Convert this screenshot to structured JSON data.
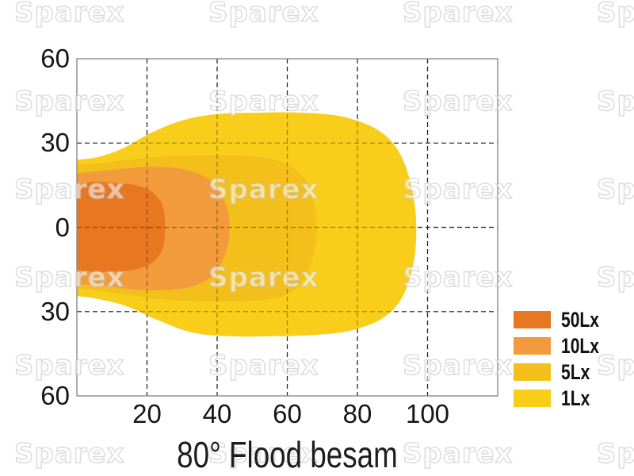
{
  "watermark": {
    "text": "Sparex"
  },
  "chart_data": {
    "type": "area",
    "subtype": "isolux-beam-pattern",
    "title": "80° Flood besam",
    "xlabel": "",
    "ylabel": "",
    "x_range": [
      0,
      120
    ],
    "y_range": [
      -60,
      60
    ],
    "x_ticks": [
      20,
      40,
      60,
      80,
      100
    ],
    "y_gridlines": [
      30,
      0,
      -30
    ],
    "y_tick_labels": [
      {
        "value": 60,
        "label": "60"
      },
      {
        "value": 30,
        "label": "30"
      },
      {
        "value": 0,
        "label": "0"
      },
      {
        "value": -30,
        "label": "30"
      },
      {
        "value": -60,
        "label": "60"
      }
    ],
    "grid": "dashed",
    "grid_color": "#3a3a3a",
    "border_color": "#8a8a8a",
    "legend_position": "bottom-right",
    "legend": [
      {
        "label": "50Lx",
        "color": "#e87722"
      },
      {
        "label": "10Lx",
        "color": "#f29b3c"
      },
      {
        "label": "5Lx",
        "color": "#f3bf1b"
      },
      {
        "label": "1Lx",
        "color": "#f9ce1b"
      }
    ],
    "series": [
      {
        "name": "1Lx",
        "color": "#f9ce1b",
        "points": [
          [
            0,
            24
          ],
          [
            6,
            25
          ],
          [
            13,
            28
          ],
          [
            21,
            33.5
          ],
          [
            30,
            38
          ],
          [
            40,
            40.3
          ],
          [
            52,
            40.8
          ],
          [
            64,
            40.8
          ],
          [
            76,
            39.3
          ],
          [
            86,
            34.5
          ],
          [
            92,
            26.5
          ],
          [
            95.5,
            14
          ],
          [
            96.8,
            0
          ],
          [
            95.8,
            -14
          ],
          [
            92.5,
            -25.5
          ],
          [
            87,
            -32.5
          ],
          [
            78,
            -36.8
          ],
          [
            68,
            -38.3
          ],
          [
            56,
            -38.8
          ],
          [
            44,
            -38.8
          ],
          [
            33,
            -37.5
          ],
          [
            23,
            -33
          ],
          [
            14,
            -28
          ],
          [
            6,
            -25.5
          ],
          [
            0,
            -24.5
          ]
        ]
      },
      {
        "name": "5Lx",
        "color": "#f3bf1b",
        "points": [
          [
            0,
            22.2
          ],
          [
            6,
            22.8
          ],
          [
            13,
            23.8
          ],
          [
            20,
            24.7
          ],
          [
            28,
            25.3
          ],
          [
            37,
            25.6
          ],
          [
            46,
            25.5
          ],
          [
            54,
            24.6
          ],
          [
            60.5,
            22
          ],
          [
            65,
            17
          ],
          [
            67.6,
            9
          ],
          [
            68.4,
            0
          ],
          [
            67.6,
            -9.5
          ],
          [
            65,
            -18
          ],
          [
            60.5,
            -23.5
          ],
          [
            54,
            -25.8
          ],
          [
            46,
            -26.4
          ],
          [
            37,
            -26.4
          ],
          [
            28,
            -26
          ],
          [
            20,
            -25
          ],
          [
            13,
            -23.8
          ],
          [
            6,
            -22.6
          ],
          [
            0,
            -21.7
          ]
        ]
      },
      {
        "name": "10Lx",
        "color": "#f29b3c",
        "points": [
          [
            0,
            19.3
          ],
          [
            5,
            19.8
          ],
          [
            11,
            20.6
          ],
          [
            17,
            21.3
          ],
          [
            23,
            21.5
          ],
          [
            29,
            21
          ],
          [
            34,
            19.4
          ],
          [
            38.5,
            16.3
          ],
          [
            41.5,
            11
          ],
          [
            43.2,
            5
          ],
          [
            43.5,
            0
          ],
          [
            43.2,
            -5.5
          ],
          [
            41.5,
            -12
          ],
          [
            38.5,
            -17.5
          ],
          [
            34,
            -20.6
          ],
          [
            29,
            -22
          ],
          [
            23,
            -22.4
          ],
          [
            17,
            -22.2
          ],
          [
            11,
            -21.4
          ],
          [
            5,
            -20.6
          ],
          [
            0,
            -20.2
          ]
        ]
      },
      {
        "name": "50Lx",
        "color": "#e87722",
        "points": [
          [
            0,
            15.3
          ],
          [
            5,
            16.2
          ],
          [
            10,
            15.9
          ],
          [
            15,
            15.4
          ],
          [
            19,
            14.2
          ],
          [
            22,
            12
          ],
          [
            24.2,
            8.5
          ],
          [
            25,
            4
          ],
          [
            25.1,
            0
          ],
          [
            25,
            -4
          ],
          [
            24.2,
            -8.5
          ],
          [
            22,
            -12
          ],
          [
            19,
            -14.2
          ],
          [
            15,
            -15.4
          ],
          [
            10,
            -15.8
          ],
          [
            5,
            -15.9
          ],
          [
            0,
            -15.2
          ]
        ]
      }
    ]
  }
}
